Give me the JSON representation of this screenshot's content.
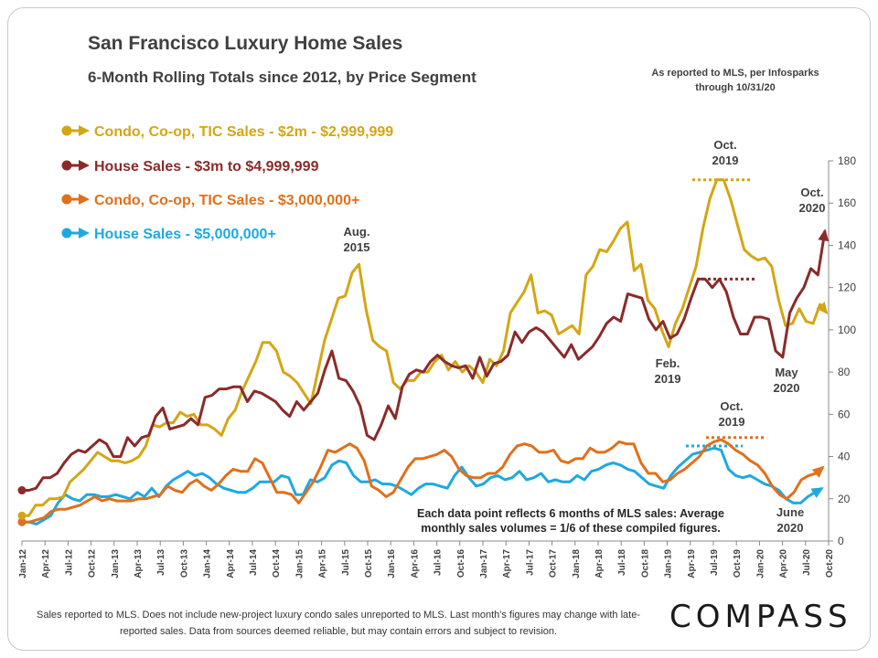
{
  "header": {
    "title": "San Francisco Luxury Home Sales",
    "subtitle": "6-Month Rolling Totals since 2012, by Price Segment",
    "source_note": "As reported to MLS, per Infosparks through 10/31/20"
  },
  "footer": {
    "disclaimer": "Sales reported to MLS. Does not include new-project luxury condo sales unreported to MLS. Last month's figures may change with late-reported sales. Data from sources deemed reliable, but may contain errors and subject to revision.",
    "logo": "COMPASS"
  },
  "chart_data": {
    "type": "line",
    "ylim": [
      0,
      180
    ],
    "yticks": [
      0,
      20,
      40,
      60,
      80,
      100,
      120,
      140,
      160,
      180
    ],
    "x_tick_labels": [
      "Jan-12",
      "Apr-12",
      "Jul-12",
      "Oct-12",
      "Jan-13",
      "Apr-13",
      "Jul-13",
      "Oct-13",
      "Jan-14",
      "Apr-14",
      "Jul-14",
      "Oct-14",
      "Jan-15",
      "Apr-15",
      "Jul-15",
      "Oct-15",
      "Jan-16",
      "Apr-16",
      "Jul-16",
      "Oct-16",
      "Jan-17",
      "Apr-17",
      "Jul-17",
      "Oct-17",
      "Jan-18",
      "Apr-18",
      "Jul-18",
      "Oct-18",
      "Jan-19",
      "Apr-19",
      "Jul-19",
      "Oct-19",
      "Jan-20",
      "Apr-20",
      "Jul-20",
      "Oct-20"
    ],
    "grid": false,
    "legend_position": "top-left",
    "series": [
      {
        "name": "Condo, Co-op, TIC Sales - $2m - $2,999,999",
        "color": "#d4a614",
        "values": [
          12,
          12,
          17,
          17,
          20,
          20,
          21,
          28,
          31,
          34,
          38,
          42,
          40,
          38,
          38,
          37,
          38,
          40,
          45,
          55,
          54,
          56,
          56,
          61,
          59,
          60,
          55,
          55,
          53,
          50,
          58,
          62,
          71,
          78,
          85,
          94,
          94,
          90,
          80,
          78,
          75,
          70,
          65,
          80,
          95,
          105,
          115,
          116,
          127,
          131,
          110,
          95,
          92,
          90,
          75,
          72,
          76,
          76,
          80,
          80,
          85,
          88,
          81,
          85,
          80,
          83,
          80,
          75,
          86,
          83,
          90,
          108,
          113,
          118,
          126,
          108,
          109,
          107,
          98,
          100,
          102,
          98,
          126,
          130,
          138,
          137,
          142,
          148,
          151,
          128,
          131,
          114,
          110,
          100,
          92,
          103,
          110,
          120,
          130,
          148,
          162,
          171,
          171,
          162,
          150,
          138,
          135,
          133,
          134,
          130,
          114,
          102,
          103,
          110,
          104,
          103,
          112,
          108
        ]
      },
      {
        "name": "House Sales - $3m to $4,999,999",
        "color": "#8b2a2a",
        "values": [
          24,
          24,
          25,
          30,
          30,
          32,
          37,
          41,
          43,
          42,
          45,
          48,
          46,
          40,
          40,
          49,
          45,
          49,
          50,
          59,
          63,
          53,
          54,
          55,
          58,
          55,
          68,
          69,
          72,
          72,
          73,
          73,
          66,
          71,
          70,
          68,
          66,
          62,
          59,
          66,
          62,
          66,
          70,
          81,
          90,
          77,
          76,
          71,
          64,
          50,
          48,
          55,
          64,
          58,
          73,
          79,
          81,
          80,
          85,
          88,
          85,
          83,
          82,
          83,
          77,
          87,
          78,
          84,
          85,
          88,
          99,
          94,
          99,
          101,
          99,
          95,
          91,
          87,
          93,
          86,
          89,
          92,
          97,
          103,
          106,
          104,
          117,
          116,
          115,
          105,
          100,
          104,
          96,
          98,
          105,
          115,
          124,
          124,
          120,
          124,
          118,
          106,
          98,
          98,
          106,
          106,
          105,
          90,
          87,
          108,
          115,
          120,
          129,
          126,
          147
        ]
      },
      {
        "name": "Condo, Co-op, TIC Sales - $3,000,000+",
        "color": "#e0701c",
        "values": [
          9,
          9,
          10,
          11,
          14,
          15,
          15,
          16,
          17,
          19,
          21,
          19,
          20,
          19,
          19,
          19,
          20,
          20,
          21,
          22,
          26,
          24,
          23,
          27,
          29,
          26,
          24,
          27,
          31,
          34,
          33,
          33,
          39,
          37,
          30,
          23,
          23,
          22,
          18,
          23,
          28,
          35,
          43,
          42,
          44,
          46,
          44,
          38,
          26,
          24,
          21,
          23,
          29,
          35,
          39,
          39,
          40,
          41,
          43,
          40,
          34,
          31,
          30,
          30,
          32,
          32,
          35,
          41,
          45,
          46,
          45,
          42,
          42,
          43,
          38,
          37,
          39,
          39,
          44,
          42,
          42,
          44,
          47,
          46,
          46,
          37,
          32,
          32,
          28,
          29,
          32,
          34,
          37,
          40,
          45,
          47,
          48,
          46,
          43,
          41,
          38,
          36,
          32,
          26,
          22,
          20,
          23,
          29,
          31,
          32,
          35
        ]
      },
      {
        "name": "House Sales - $5,000,000+",
        "color": "#1ea9e0",
        "values": [
          9,
          9,
          8,
          10,
          12,
          18,
          22,
          20,
          19,
          22,
          22,
          21,
          21,
          22,
          21,
          20,
          23,
          21,
          25,
          21,
          26,
          29,
          31,
          33,
          31,
          32,
          30,
          27,
          25,
          24,
          23,
          23,
          25,
          28,
          28,
          28,
          31,
          30,
          22,
          22,
          29,
          28,
          30,
          36,
          38,
          37,
          31,
          28,
          28,
          29,
          27,
          27,
          26,
          24,
          22,
          25,
          27,
          27,
          26,
          25,
          31,
          35,
          30,
          26,
          27,
          30,
          31,
          29,
          30,
          33,
          29,
          30,
          32,
          28,
          29,
          28,
          28,
          31,
          29,
          33,
          34,
          36,
          37,
          36,
          34,
          33,
          30,
          27,
          26,
          25,
          31,
          35,
          38,
          41,
          42,
          43,
          44,
          43,
          34,
          31,
          30,
          31,
          29,
          27,
          26,
          24,
          20,
          18,
          18,
          21,
          23,
          25
        ]
      }
    ],
    "annotations": [
      "Aug. 2015",
      "Oct. 2019",
      "Oct. 2020",
      "Feb. 2019",
      "May 2020",
      "Oct. 2019",
      "June 2020",
      "Each data point reflects 6 months of MLS sales: Average monthly sales volumes = 1/6 of these compiled figures."
    ],
    "reference_lines": [
      {
        "series": 0,
        "value": 171
      },
      {
        "series": 1,
        "value": 124
      },
      {
        "series": 2,
        "value": 49
      },
      {
        "series": 3,
        "value": 45
      }
    ]
  }
}
